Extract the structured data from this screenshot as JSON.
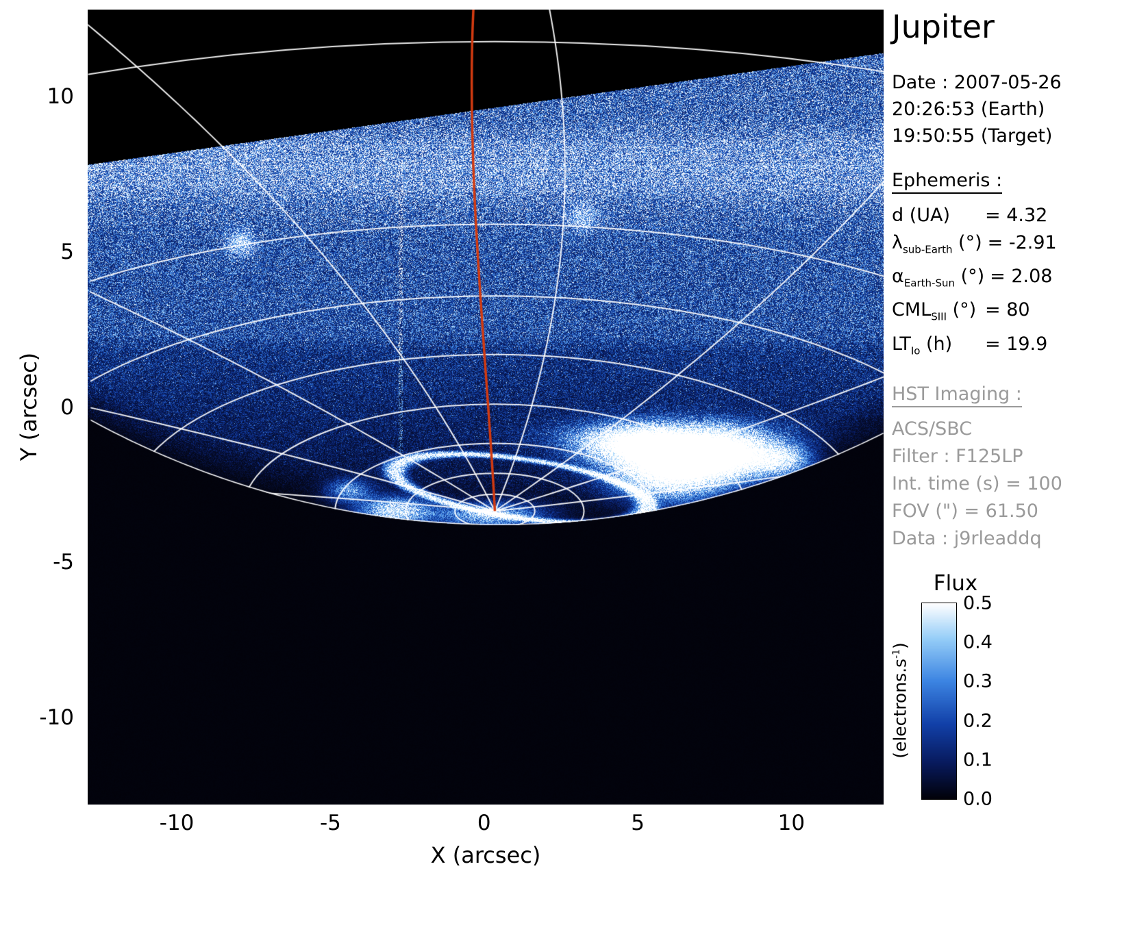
{
  "title": "Jupiter",
  "header": {
    "date": "Date : 2007-05-26",
    "time_earth": "20:26:53 (Earth)",
    "time_target": "19:50:55 (Target)"
  },
  "ephemeris": {
    "heading": "Ephemeris :",
    "rows": [
      {
        "pre": "d (UA)",
        "sub": "",
        "mid": "",
        "value": "= 4.32"
      },
      {
        "pre": "λ",
        "sub": "sub-Earth",
        "mid": " (°)",
        "value": "= -2.91"
      },
      {
        "pre": "α",
        "sub": "Earth-Sun",
        "mid": " (°)",
        "value": "= 2.08"
      },
      {
        "pre": "CML",
        "sub": "SIII",
        "mid": " (°)",
        "value": "= 80"
      },
      {
        "pre": "LT",
        "sub": "Io",
        "mid": " (h)",
        "value": "= 19.9"
      }
    ]
  },
  "hst": {
    "heading": "HST Imaging :",
    "rows": [
      "ACS/SBC",
      "Filter : F125LP",
      "Int. time (s) = 100",
      "FOV (\") = 61.50",
      "Data : j9rleaddq"
    ]
  },
  "colorbar": {
    "title": "Flux",
    "unit_pre": "(electrons.s",
    "unit_sup": "-1",
    "unit_post": ")",
    "tick_labels": [
      "0.5",
      "0.4",
      "0.3",
      "0.2",
      "0.1",
      "0.0"
    ]
  },
  "axes": {
    "xlabel": "X (arcsec)",
    "ylabel": "Y (arcsec)"
  },
  "chart_data": {
    "type": "heatmap",
    "title": "Jupiter",
    "subtitle": "HST/ACS SBC F125LP far-UV image of Jupiter northern aurora",
    "xlabel": "X (arcsec)",
    "ylabel": "Y (arcsec)",
    "xlim": [
      -12.9,
      13.0
    ],
    "ylim": [
      -12.8,
      12.8
    ],
    "xticks": [
      -10,
      -5,
      0,
      5,
      10
    ],
    "yticks": [
      10,
      5,
      0,
      -5,
      -10
    ],
    "grid": false,
    "colorbar": {
      "label": "Flux",
      "unit": "electrons.s^-1",
      "range": [
        0.0,
        0.5
      ],
      "ticks": [
        0.5,
        0.4,
        0.3,
        0.2,
        0.1,
        0.0
      ],
      "position": "right"
    },
    "ephemeris_values": {
      "d_UA": 4.32,
      "lambda_subEarth_deg": -2.91,
      "alpha_EarthSun_deg": 2.08,
      "CML_SIII_deg": 80,
      "LT_Io_h": 19.9
    },
    "observation": {
      "date": "2007-05-26",
      "time_earth": "20:26:53",
      "time_target": "19:50:55",
      "instrument": "ACS/SBC",
      "filter": "F125LP",
      "int_time_s": 100,
      "fov_arcsec": 61.5,
      "dataset": "j9rleaddq"
    },
    "image_model": {
      "seed": 123456,
      "colormap": [
        [
          0.0,
          [
            2,
            2,
            10
          ]
        ],
        [
          0.18,
          [
            8,
            26,
            92
          ]
        ],
        [
          0.38,
          [
            18,
            64,
            168
          ]
        ],
        [
          0.6,
          [
            60,
            132,
            226
          ]
        ],
        [
          0.82,
          [
            150,
            206,
            248
          ]
        ],
        [
          1.0,
          [
            255,
            255,
            255
          ]
        ]
      ],
      "top_edge": {
        "y_at_left": 7.8,
        "slope": 0.139
      },
      "limb": {
        "cx": 0.5,
        "cy": 24.2,
        "r": 28
      },
      "bands": [
        [
          -3.9,
          0.045
        ],
        [
          -2.8,
          0.07
        ],
        [
          -1.6,
          0.1
        ],
        [
          -0.3,
          0.13
        ],
        [
          0.8,
          0.16
        ],
        [
          1.8,
          0.18
        ],
        [
          2.3,
          0.25
        ],
        [
          4.2,
          0.26
        ],
        [
          5.5,
          0.27
        ],
        [
          6.5,
          0.33
        ],
        [
          7.1,
          0.42
        ],
        [
          8.4,
          0.42
        ],
        [
          9.2,
          0.31
        ],
        [
          12.8,
          0.3
        ]
      ],
      "streak_band": {
        "y0": 6.9,
        "y1": 8.6,
        "amp": 0.1
      },
      "bright_line_y": 7.75,
      "artifact_column": {
        "x": -2.72,
        "y0": -1.5,
        "y1": 8.0,
        "halfw": 0.07
      },
      "aurora_ring": {
        "cx": 1.2,
        "cy": -2.62,
        "rx": 4.15,
        "ry": 0.95,
        "rot": -0.14,
        "sigma": 0.055,
        "amp": 0.55
      },
      "aurora_blobs": [
        {
          "cx": 6.1,
          "cy": -1.95,
          "sx": 1.25,
          "sy": 0.65,
          "amp": 0.9
        },
        {
          "cx": 7.9,
          "cy": -1.55,
          "sx": 1.0,
          "sy": 0.5,
          "amp": 0.7
        },
        {
          "cx": 4.8,
          "cy": -1.25,
          "sx": 1.2,
          "sy": 0.4,
          "amp": 0.5
        },
        {
          "cx": 9.6,
          "cy": -1.7,
          "sx": 0.7,
          "sy": 0.35,
          "amp": 0.5
        },
        {
          "cx": 6.0,
          "cy": -0.95,
          "sx": 2.2,
          "sy": 0.35,
          "amp": 0.3
        },
        {
          "cx": -2.9,
          "cy": -3.35,
          "sx": 0.8,
          "sy": 0.3,
          "amp": 0.5
        },
        {
          "cx": -4.4,
          "cy": -2.7,
          "sx": 0.5,
          "sy": 0.25,
          "amp": 0.3
        },
        {
          "cx": 0.2,
          "cy": -3.5,
          "sx": 1.2,
          "sy": 0.28,
          "amp": 0.4
        }
      ],
      "spots": [
        {
          "cx": -7.9,
          "cy": 5.3,
          "sx": 0.3,
          "sy": 0.28,
          "amp": 0.3
        },
        {
          "cx": 3.2,
          "cy": 6.1,
          "sx": 0.35,
          "sy": 0.3,
          "amp": 0.22
        }
      ],
      "graticule": {
        "pole": {
          "x": 0.35,
          "y": -3.35
        },
        "lat_radii": [
          1.3,
          2.9,
          5.2,
          8.2,
          12,
          16.5,
          22,
          36
        ],
        "lat_flatten": 0.42,
        "meridian_angles_deg": [
          168,
          146,
          124,
          102,
          80,
          58,
          36,
          14
        ],
        "meridian_bend": 0.12,
        "line_color": "rgba(255,255,255,0.92)",
        "limb_color": "rgba(255,255,255,0.95)"
      },
      "cml_line": {
        "color": "#d13a10",
        "bezier": [
          [
            0.35,
            -3.35
          ],
          [
            0.1,
            1.5
          ],
          [
            -0.6,
            7.5
          ],
          [
            -0.35,
            12.8
          ]
        ]
      }
    }
  }
}
